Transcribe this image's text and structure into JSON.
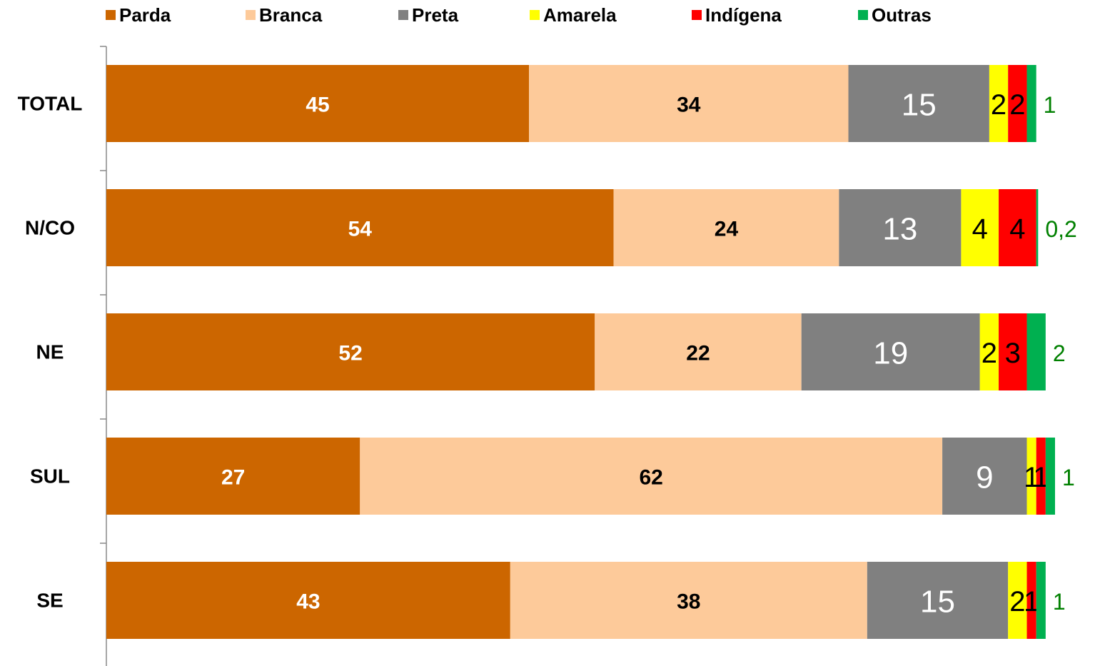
{
  "chart_data": {
    "type": "stacked_barh",
    "categories": [
      "TOTAL",
      "N/CO",
      "NE",
      "SUL",
      "SE"
    ],
    "series": [
      {
        "name": "Parda",
        "color": "#cc6600",
        "values": [
          45,
          54,
          52,
          27,
          43
        ]
      },
      {
        "name": "Branca",
        "color": "#fdca9a",
        "values": [
          34,
          24,
          22,
          62,
          38
        ]
      },
      {
        "name": "Preta",
        "color": "#808080",
        "values": [
          15,
          13,
          19,
          9,
          15
        ]
      },
      {
        "name": "Amarela",
        "color": "#ffff00",
        "values": [
          2,
          4,
          2,
          1,
          2
        ]
      },
      {
        "name": "Indígena",
        "color": "#ff0000",
        "values": [
          2,
          4,
          3,
          1,
          1
        ]
      },
      {
        "name": "Outras",
        "color": "#00b050",
        "values": [
          1,
          0.2,
          2,
          1,
          1
        ],
        "value_labels": [
          "1",
          "0,2",
          "2",
          "1",
          "1"
        ]
      }
    ],
    "legend": "top"
  }
}
